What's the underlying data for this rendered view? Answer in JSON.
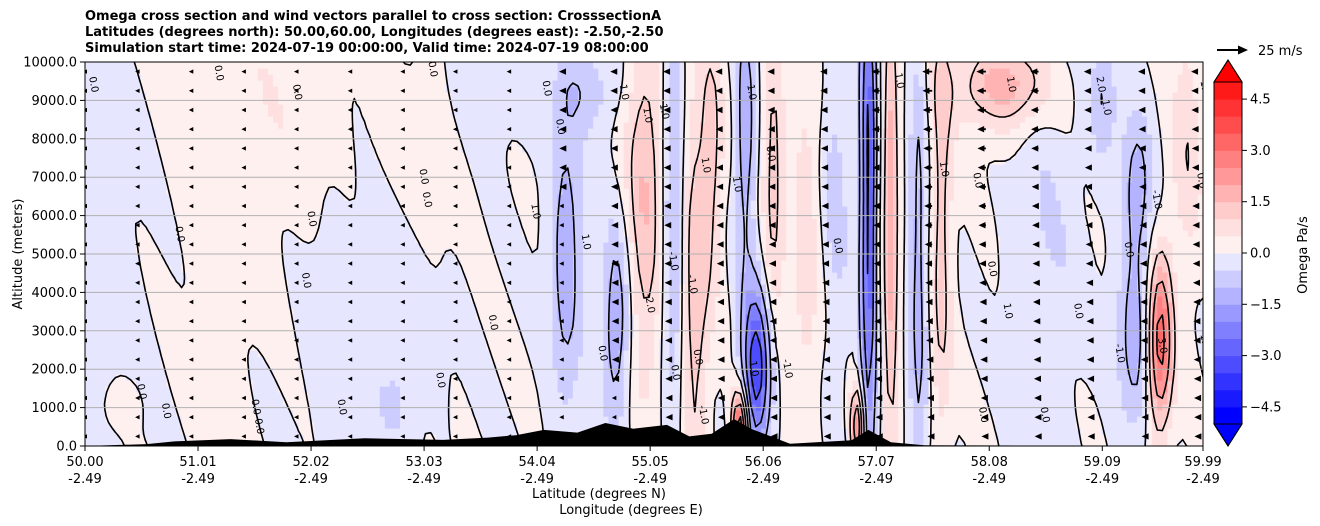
{
  "title": {
    "line1": "Omega cross section and wind vectors parallel to cross section: CrosssectionA",
    "line2": "Latitudes (degrees north): 50.00,60.00, Longitudes (degrees east): -2.50,-2.50",
    "line3": "Simulation start time: 2024-07-19 00:00:00, Valid time: 2024-07-19 08:00:00"
  },
  "quiver_key": {
    "label": "25 m/s"
  },
  "colorbar": {
    "label": "Omega Pa/s",
    "ticks": [
      "4.5",
      "3.0",
      "1.5",
      "0.0",
      "−1.5",
      "−3.0",
      "−4.5"
    ],
    "tick_values": [
      4.5,
      3.0,
      1.5,
      0.0,
      -1.5,
      -3.0,
      -4.5
    ],
    "range": [
      -5.0,
      5.0
    ],
    "levels": [
      -5.0,
      -4.5,
      -4.0,
      -3.5,
      -3.0,
      -2.5,
      -2.0,
      -1.5,
      -1.0,
      -0.5,
      0.0,
      0.5,
      1.0,
      1.5,
      2.0,
      2.5,
      3.0,
      3.5,
      4.0,
      4.5,
      5.0
    ],
    "colors": [
      "#0000ff",
      "#1a1aff",
      "#3333ff",
      "#4d4dff",
      "#6666ff",
      "#8080ff",
      "#9999ff",
      "#b3b3ff",
      "#ccccff",
      "#e6e6ff",
      "#fff0f0",
      "#ffe0e0",
      "#ffcccc",
      "#ffb3b3",
      "#ff9999",
      "#ff8080",
      "#ff6666",
      "#ff4d4d",
      "#ff3333",
      "#ff1a1a"
    ],
    "extend": "both"
  },
  "chart_data": {
    "type": "heatmap",
    "title": "Omega cross section and wind vectors parallel to cross section: CrosssectionA",
    "xlabel": "Latitude (degrees N)",
    "xlabel2": "Longitude (degrees E)",
    "ylabel": "Altitude (meters)",
    "xlim": [
      50.0,
      59.99
    ],
    "ylim": [
      0.0,
      10000.0
    ],
    "x_ticks": [
      {
        "lat": "50.00",
        "lon": "-2.49",
        "v": 50.0
      },
      {
        "lat": "51.01",
        "lon": "-2.49",
        "v": 51.01
      },
      {
        "lat": "52.02",
        "lon": "-2.49",
        "v": 52.02
      },
      {
        "lat": "53.03",
        "lon": "-2.49",
        "v": 53.03
      },
      {
        "lat": "54.04",
        "lon": "-2.49",
        "v": 54.04
      },
      {
        "lat": "55.05",
        "lon": "-2.49",
        "v": 55.05
      },
      {
        "lat": "56.06",
        "lon": "-2.49",
        "v": 56.06
      },
      {
        "lat": "57.07",
        "lon": "-2.49",
        "v": 57.07
      },
      {
        "lat": "58.08",
        "lon": "-2.49",
        "v": 58.08
      },
      {
        "lat": "59.09",
        "lon": "-2.49",
        "v": 59.09
      },
      {
        "lat": "59.99",
        "lon": "-2.49",
        "v": 59.99
      }
    ],
    "y_ticks": [
      {
        "label": "0.0",
        "v": 0
      },
      {
        "label": "1000.0",
        "v": 1000
      },
      {
        "label": "2000.0",
        "v": 2000
      },
      {
        "label": "3000.0",
        "v": 3000
      },
      {
        "label": "4000.0",
        "v": 4000
      },
      {
        "label": "5000.0",
        "v": 5000
      },
      {
        "label": "6000.0",
        "v": 6000
      },
      {
        "label": "7000.0",
        "v": 7000
      },
      {
        "label": "8000.0",
        "v": 8000
      },
      {
        "label": "9000.0",
        "v": 9000
      },
      {
        "label": "10000.0",
        "v": 10000
      }
    ],
    "grid": "horizontal",
    "features": [
      {
        "lat": 51.2,
        "z": 6500,
        "amp": 0.3,
        "sx": 0.55,
        "sz": 3500
      },
      {
        "lat": 51.6,
        "z": 9000,
        "amp": 0.25,
        "sx": 0.4,
        "sz": 1800
      },
      {
        "lat": 50.3,
        "z": 5000,
        "amp": -0.25,
        "sx": 0.45,
        "sz": 3500
      },
      {
        "lat": 52.4,
        "z": 3500,
        "amp": -0.3,
        "sx": 0.4,
        "sz": 2500
      },
      {
        "lat": 53.0,
        "z": 8000,
        "amp": 0.3,
        "sx": 0.35,
        "sz": 1500
      },
      {
        "lat": 53.6,
        "z": 9200,
        "amp": -0.4,
        "sx": 0.25,
        "sz": 1200
      },
      {
        "lat": 54.3,
        "z": 5000,
        "amp": -1.4,
        "sx": 0.1,
        "sz": 2800
      },
      {
        "lat": 54.5,
        "z": 9300,
        "amp": -0.8,
        "sx": 0.2,
        "sz": 800
      },
      {
        "lat": 54.75,
        "z": 3200,
        "amp": -1.6,
        "sx": 0.09,
        "sz": 1800
      },
      {
        "lat": 55.0,
        "z": 6500,
        "amp": 1.5,
        "sx": 0.12,
        "sz": 3500
      },
      {
        "lat": 55.25,
        "z": 6000,
        "amp": -1.2,
        "sx": 0.07,
        "sz": 4000
      },
      {
        "lat": 55.45,
        "z": 4000,
        "amp": 1.4,
        "sx": 0.08,
        "sz": 3800
      },
      {
        "lat": 55.6,
        "z": 7500,
        "amp": 1.2,
        "sx": 0.07,
        "sz": 2500
      },
      {
        "lat": 55.85,
        "z": 500,
        "amp": 4.0,
        "sx": 0.05,
        "sz": 700
      },
      {
        "lat": 56.0,
        "z": 2000,
        "amp": -3.6,
        "sx": 0.09,
        "sz": 1500
      },
      {
        "lat": 55.9,
        "z": 8000,
        "amp": -1.5,
        "sx": 0.06,
        "sz": 2500
      },
      {
        "lat": 56.15,
        "z": 7000,
        "amp": 1.2,
        "sx": 0.07,
        "sz": 3500
      },
      {
        "lat": 56.45,
        "z": 5500,
        "amp": 0.8,
        "sx": 0.1,
        "sz": 4000
      },
      {
        "lat": 56.7,
        "z": 7000,
        "amp": -0.7,
        "sx": 0.1,
        "sz": 3500
      },
      {
        "lat": 57.0,
        "z": 6500,
        "amp": -3.2,
        "sx": 0.05,
        "sz": 5500
      },
      {
        "lat": 56.9,
        "z": 500,
        "amp": 3.0,
        "sx": 0.04,
        "sz": 700
      },
      {
        "lat": 57.2,
        "z": 6000,
        "amp": 2.0,
        "sx": 0.05,
        "sz": 4500
      },
      {
        "lat": 57.45,
        "z": 4500,
        "amp": -1.3,
        "sx": 0.06,
        "sz": 4500
      },
      {
        "lat": 57.65,
        "z": 6000,
        "amp": 1.3,
        "sx": 0.07,
        "sz": 4500
      },
      {
        "lat": 58.2,
        "z": 9400,
        "amp": 1.8,
        "sx": 0.3,
        "sz": 800
      },
      {
        "lat": 58.6,
        "z": 5000,
        "amp": -0.5,
        "sx": 0.2,
        "sz": 3500
      },
      {
        "lat": 59.1,
        "z": 9200,
        "amp": -1.0,
        "sx": 0.08,
        "sz": 1200
      },
      {
        "lat": 59.4,
        "z": 6800,
        "amp": -1.2,
        "sx": 0.1,
        "sz": 1500
      },
      {
        "lat": 59.4,
        "z": 2800,
        "amp": -1.4,
        "sx": 0.12,
        "sz": 1700
      },
      {
        "lat": 59.6,
        "z": 2700,
        "amp": 3.6,
        "sx": 0.08,
        "sz": 1600
      },
      {
        "lat": 59.85,
        "z": 8000,
        "amp": 0.9,
        "sx": 0.1,
        "sz": 2500
      },
      {
        "lat": 50.35,
        "z": 1100,
        "amp": 0.5,
        "sx": 0.1,
        "sz": 400
      },
      {
        "lat": 52.8,
        "z": 1200,
        "amp": -0.5,
        "sx": 0.12,
        "sz": 800
      }
    ],
    "contour_labels": [
      {
        "text": "0.0",
        "lat": 50.05,
        "z": 9400
      },
      {
        "text": "0.0",
        "lat": 51.17,
        "z": 9700
      },
      {
        "text": "0.0",
        "lat": 51.87,
        "z": 9200
      },
      {
        "text": "0.0",
        "lat": 53.08,
        "z": 9800
      },
      {
        "text": "0.0",
        "lat": 54.22,
        "z": 8300
      },
      {
        "text": "0.0",
        "lat": 50.82,
        "z": 5500
      },
      {
        "text": "0.0",
        "lat": 52.0,
        "z": 5900
      },
      {
        "text": "0.0",
        "lat": 51.95,
        "z": 4300
      },
      {
        "text": "0.0",
        "lat": 53.0,
        "z": 7000
      },
      {
        "text": "0.0",
        "lat": 53.03,
        "z": 6400
      },
      {
        "text": "0.0",
        "lat": 53.62,
        "z": 3200
      },
      {
        "text": "0.0",
        "lat": 50.48,
        "z": 1400
      },
      {
        "text": "0.0",
        "lat": 50.7,
        "z": 900
      },
      {
        "text": "0.0",
        "lat": 51.5,
        "z": 1000
      },
      {
        "text": "0.0",
        "lat": 51.53,
        "z": 500
      },
      {
        "text": "0.0",
        "lat": 52.27,
        "z": 1000
      },
      {
        "text": "0.0",
        "lat": 53.15,
        "z": 1700
      },
      {
        "text": "0.0",
        "lat": 54.1,
        "z": 9300
      },
      {
        "text": "1.0",
        "lat": 54.79,
        "z": 9200
      },
      {
        "text": "1.0",
        "lat": 55.0,
        "z": 8600
      },
      {
        "text": "1.0",
        "lat": 55.15,
        "z": 8700
      },
      {
        "text": "1.0",
        "lat": 55.52,
        "z": 7300
      },
      {
        "text": "1.0",
        "lat": 55.93,
        "z": 9200
      },
      {
        "text": "1.0",
        "lat": 55.8,
        "z": 6800
      },
      {
        "text": "1.0",
        "lat": 54.0,
        "z": 6100
      },
      {
        "text": "1.0",
        "lat": 54.45,
        "z": 5300
      },
      {
        "text": "-1.0",
        "lat": 55.4,
        "z": 4200
      },
      {
        "text": "-1.0",
        "lat": 55.23,
        "z": 4800
      },
      {
        "text": "-2.0",
        "lat": 55.02,
        "z": 3700
      },
      {
        "text": "0.0",
        "lat": 55.45,
        "z": 2300
      },
      {
        "text": "0.0",
        "lat": 54.6,
        "z": 2400
      },
      {
        "text": "0.0",
        "lat": 55.25,
        "z": 1900
      },
      {
        "text": "-1.0",
        "lat": 55.5,
        "z": 800
      },
      {
        "text": "1.0",
        "lat": 55.95,
        "z": 2000
      },
      {
        "text": "-1.0",
        "lat": 56.25,
        "z": 2000
      },
      {
        "text": "0.0",
        "lat": 56.1,
        "z": 7600
      },
      {
        "text": "0.0",
        "lat": 56.7,
        "z": 5200
      },
      {
        "text": "1.0",
        "lat": 57.25,
        "z": 9500
      },
      {
        "text": "1.0",
        "lat": 57.65,
        "z": 7200
      },
      {
        "text": "0.0",
        "lat": 57.95,
        "z": 6900
      },
      {
        "text": "1.0",
        "lat": 58.22,
        "z": 3500
      },
      {
        "text": "0.0",
        "lat": 58.08,
        "z": 4600
      },
      {
        "text": "1.0",
        "lat": 58.25,
        "z": 9400
      },
      {
        "text": "2.0",
        "lat": 59.05,
        "z": 9400
      },
      {
        "text": "1.0",
        "lat": 59.1,
        "z": 8800
      },
      {
        "text": "0.0",
        "lat": 59.3,
        "z": 5100
      },
      {
        "text": "-1.0",
        "lat": 59.55,
        "z": 6400
      },
      {
        "text": "-1.0",
        "lat": 59.22,
        "z": 2400
      },
      {
        "text": "3.0",
        "lat": 59.6,
        "z": 2600
      },
      {
        "text": "0.0",
        "lat": 58.85,
        "z": 3500
      },
      {
        "text": "0.0",
        "lat": 58.0,
        "z": 800
      },
      {
        "text": "0.0",
        "lat": 58.55,
        "z": 800
      },
      {
        "text": "1.0",
        "lat": 59.98,
        "z": 9300
      },
      {
        "text": "0.0",
        "lat": 59.95,
        "z": 6900
      },
      {
        "text": "1.0",
        "lat": 59.98,
        "z": 2700
      }
    ],
    "wind": {
      "lat_columns": [
        50.0,
        50.47,
        50.95,
        51.42,
        51.89,
        52.37,
        52.84,
        53.31,
        53.79,
        54.26,
        54.73,
        55.21,
        55.68,
        56.15,
        56.63,
        57.1,
        57.57,
        58.05,
        58.52,
        58.99,
        59.47,
        59.94
      ],
      "alt_rows": [
        250,
        750,
        1250,
        1750,
        2250,
        2750,
        3250,
        3750,
        4250,
        4750,
        5250,
        5750,
        6250,
        6750,
        7250,
        7750,
        8250,
        8750,
        9250,
        9750
      ],
      "u_profile_ms": [
        -0.5,
        -0.8,
        -1.0,
        -1.0,
        -1.0,
        -1.2,
        -1.5,
        -1.8,
        -2.2,
        -3.0,
        -4.5,
        -5.5,
        -6.0,
        -6.5,
        -7.5,
        -9.0,
        -11.0,
        -10.5,
        -9.0,
        -8.0,
        -7.5,
        -7.0
      ]
    },
    "terrain": [
      {
        "lat": 50.55,
        "z": 50
      },
      {
        "lat": 50.8,
        "z": 120
      },
      {
        "lat": 51.3,
        "z": 180
      },
      {
        "lat": 51.8,
        "z": 100
      },
      {
        "lat": 52.5,
        "z": 200
      },
      {
        "lat": 53.2,
        "z": 160
      },
      {
        "lat": 53.6,
        "z": 220
      },
      {
        "lat": 53.85,
        "z": 280
      },
      {
        "lat": 54.1,
        "z": 420
      },
      {
        "lat": 54.4,
        "z": 350
      },
      {
        "lat": 54.65,
        "z": 600
      },
      {
        "lat": 54.9,
        "z": 450
      },
      {
        "lat": 55.2,
        "z": 550
      },
      {
        "lat": 55.4,
        "z": 250
      },
      {
        "lat": 55.6,
        "z": 320
      },
      {
        "lat": 55.8,
        "z": 700
      },
      {
        "lat": 55.95,
        "z": 450
      },
      {
        "lat": 56.3,
        "z": 60
      },
      {
        "lat": 56.85,
        "z": 150
      },
      {
        "lat": 57.0,
        "z": 420
      },
      {
        "lat": 57.2,
        "z": 100
      },
      {
        "lat": 57.5,
        "z": 20
      }
    ]
  }
}
